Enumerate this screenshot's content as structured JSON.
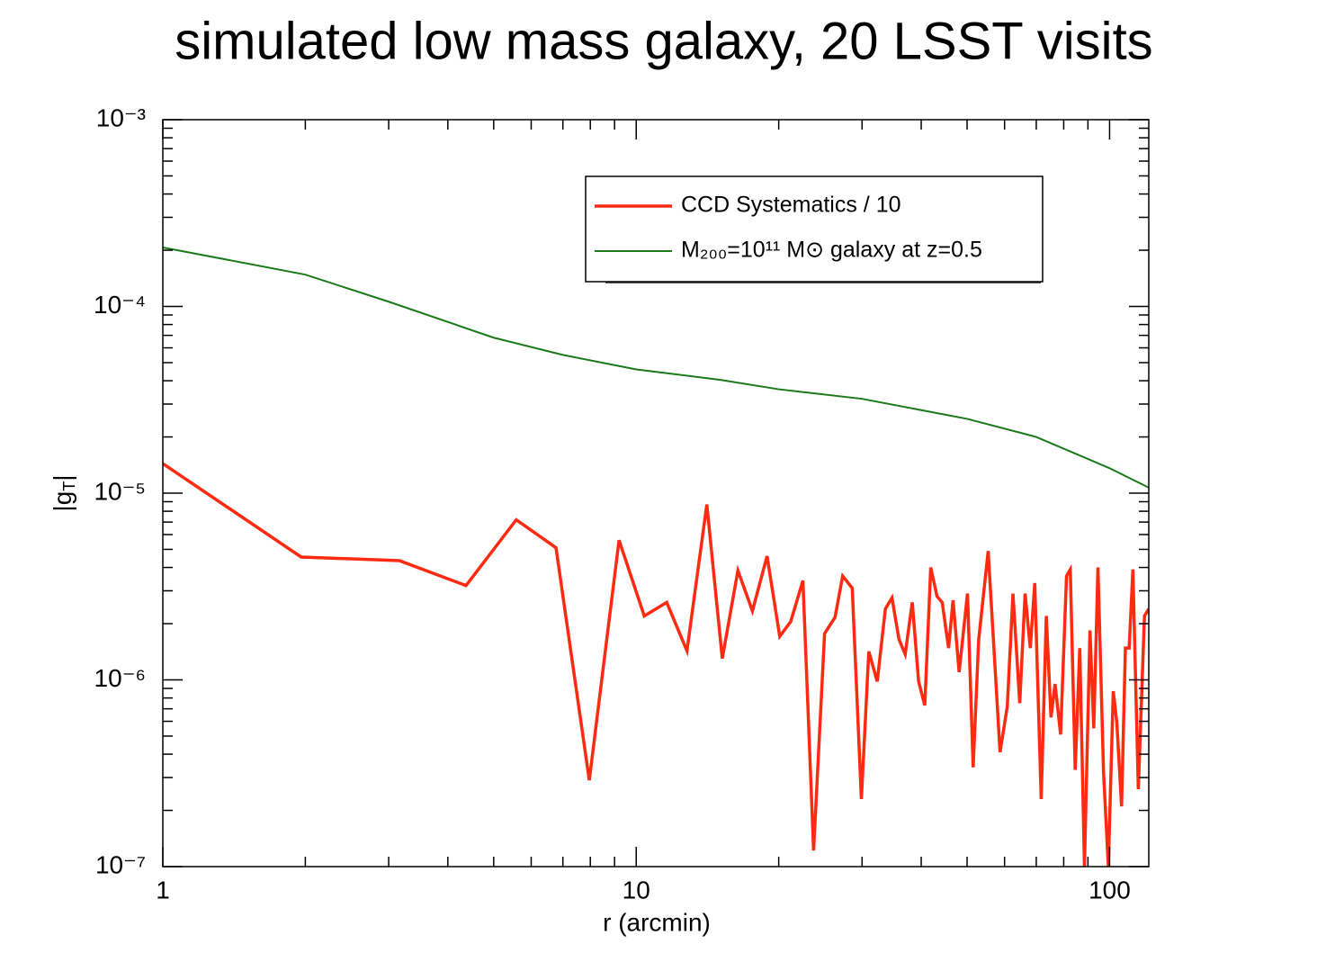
{
  "chart_data": {
    "type": "line",
    "title": "simulated low mass galaxy, 20 LSST visits",
    "xlabel": "r (arcmin)",
    "ylabel": [
      "|g",
      "T",
      "|"
    ],
    "xscale": "log",
    "yscale": "log",
    "xlim": [
      1,
      121
    ],
    "ylim": [
      1e-07,
      0.001
    ],
    "xticks": [
      1,
      10,
      100
    ],
    "yticks": [
      {
        "value": 1e-07,
        "label": "10⁻⁷"
      },
      {
        "value": 1e-06,
        "label": "10⁻⁶"
      },
      {
        "value": 1e-05,
        "label": "10⁻⁵"
      },
      {
        "value": 0.0001,
        "label": "10⁻⁴"
      },
      {
        "value": 0.001,
        "label": "10⁻³"
      }
    ],
    "xminorticks": [
      2,
      3,
      4,
      5,
      6,
      7,
      8,
      9,
      20,
      30,
      40,
      50,
      60,
      70,
      80,
      90
    ],
    "yminorticks": [
      2e-07,
      3e-07,
      4e-07,
      5e-07,
      6e-07,
      7e-07,
      8e-07,
      9e-07,
      2e-06,
      3e-06,
      4e-06,
      5e-06,
      6e-06,
      7e-06,
      8e-06,
      9e-06,
      2e-05,
      3e-05,
      4e-05,
      5e-05,
      6e-05,
      7e-05,
      8e-05,
      9e-05,
      0.0002,
      0.0003,
      0.0004,
      0.0005,
      0.0006,
      0.0007,
      0.0008,
      0.0009
    ],
    "legend": "upper right",
    "series": [
      {
        "name": "CCD Systematics / 10",
        "color": "#ff2a12",
        "x": [
          1,
          1.96,
          3.16,
          4.37,
          5.58,
          6.77,
          7.96,
          9.2,
          10.4,
          11.6,
          12.8,
          14.1,
          15.2,
          16.4,
          17.6,
          18.9,
          20.1,
          21.2,
          22.5,
          23.7,
          25,
          26.3,
          27.3,
          28.6,
          29.9,
          31,
          32.3,
          33.6,
          34.7,
          35.9,
          37,
          38.3,
          39.5,
          40.7,
          41.9,
          43.2,
          44.3,
          45.7,
          46.7,
          48.1,
          50.1,
          51.5,
          52.9,
          55.4,
          58.7,
          60.8,
          62.5,
          64.6,
          66.3,
          68,
          69.5,
          71.7,
          73.5,
          75.2,
          76.7,
          78.8,
          81.1,
          82.6,
          84.6,
          86.5,
          88.5,
          90.9,
          92.6,
          94.5,
          97.1,
          99.4,
          101.8,
          103.6,
          106,
          108,
          110,
          112,
          115,
          118.5,
          121
        ],
        "values": [
          1.44e-05,
          4.55e-06,
          4.35e-06,
          3.2e-06,
          7.2e-06,
          5.1e-06,
          2.9e-07,
          5.6e-06,
          2.2e-06,
          2.6e-06,
          1.43e-06,
          8.7e-06,
          1.3e-06,
          3.85e-06,
          2.34e-06,
          4.6e-06,
          1.71e-06,
          2.05e-06,
          3.4e-06,
          1.22e-07,
          1.77e-06,
          2.16e-06,
          3.6e-06,
          3.1e-06,
          2.3e-07,
          1.42e-06,
          9.8e-07,
          2.4e-06,
          2.75e-06,
          1.65e-06,
          1.37e-06,
          2.6e-06,
          9.8e-07,
          7.3e-07,
          4e-06,
          2.8e-06,
          2.6e-06,
          1.48e-06,
          2.67e-06,
          1.1e-06,
          2.9e-06,
          3.4e-07,
          1.64e-06,
          4.9e-06,
          4.1e-07,
          7.2e-07,
          2.9e-06,
          7.5e-07,
          2.9e-06,
          1.48e-06,
          3.3e-06,
          2.3e-07,
          2.2e-06,
          6.3e-07,
          9.5e-07,
          5.1e-07,
          3.6e-06,
          3.9e-06,
          3.3e-07,
          1.48e-06,
          1e-07,
          1.84e-06,
          5.5e-07,
          4e-06,
          3.2e-07,
          1e-07,
          8.7e-07,
          5.9e-07,
          2.1e-07,
          1.48e-06,
          1.48e-06,
          3.9e-06,
          2.6e-07,
          2.2e-06,
          2.4e-06
        ]
      },
      {
        "name": "M₂₀₀=10¹¹ M⊙ galaxy at z=0.5",
        "color": "#1a7a1a",
        "x": [
          1,
          2,
          3,
          5,
          7,
          10,
          15,
          20,
          30,
          50,
          70,
          100,
          121
        ],
        "values": [
          0.000207,
          0.000148,
          0.000106,
          6.8e-05,
          5.5e-05,
          4.6e-05,
          4.05e-05,
          3.6e-05,
          3.2e-05,
          2.5e-05,
          2e-05,
          1.36e-05,
          1.07e-05
        ]
      }
    ]
  }
}
